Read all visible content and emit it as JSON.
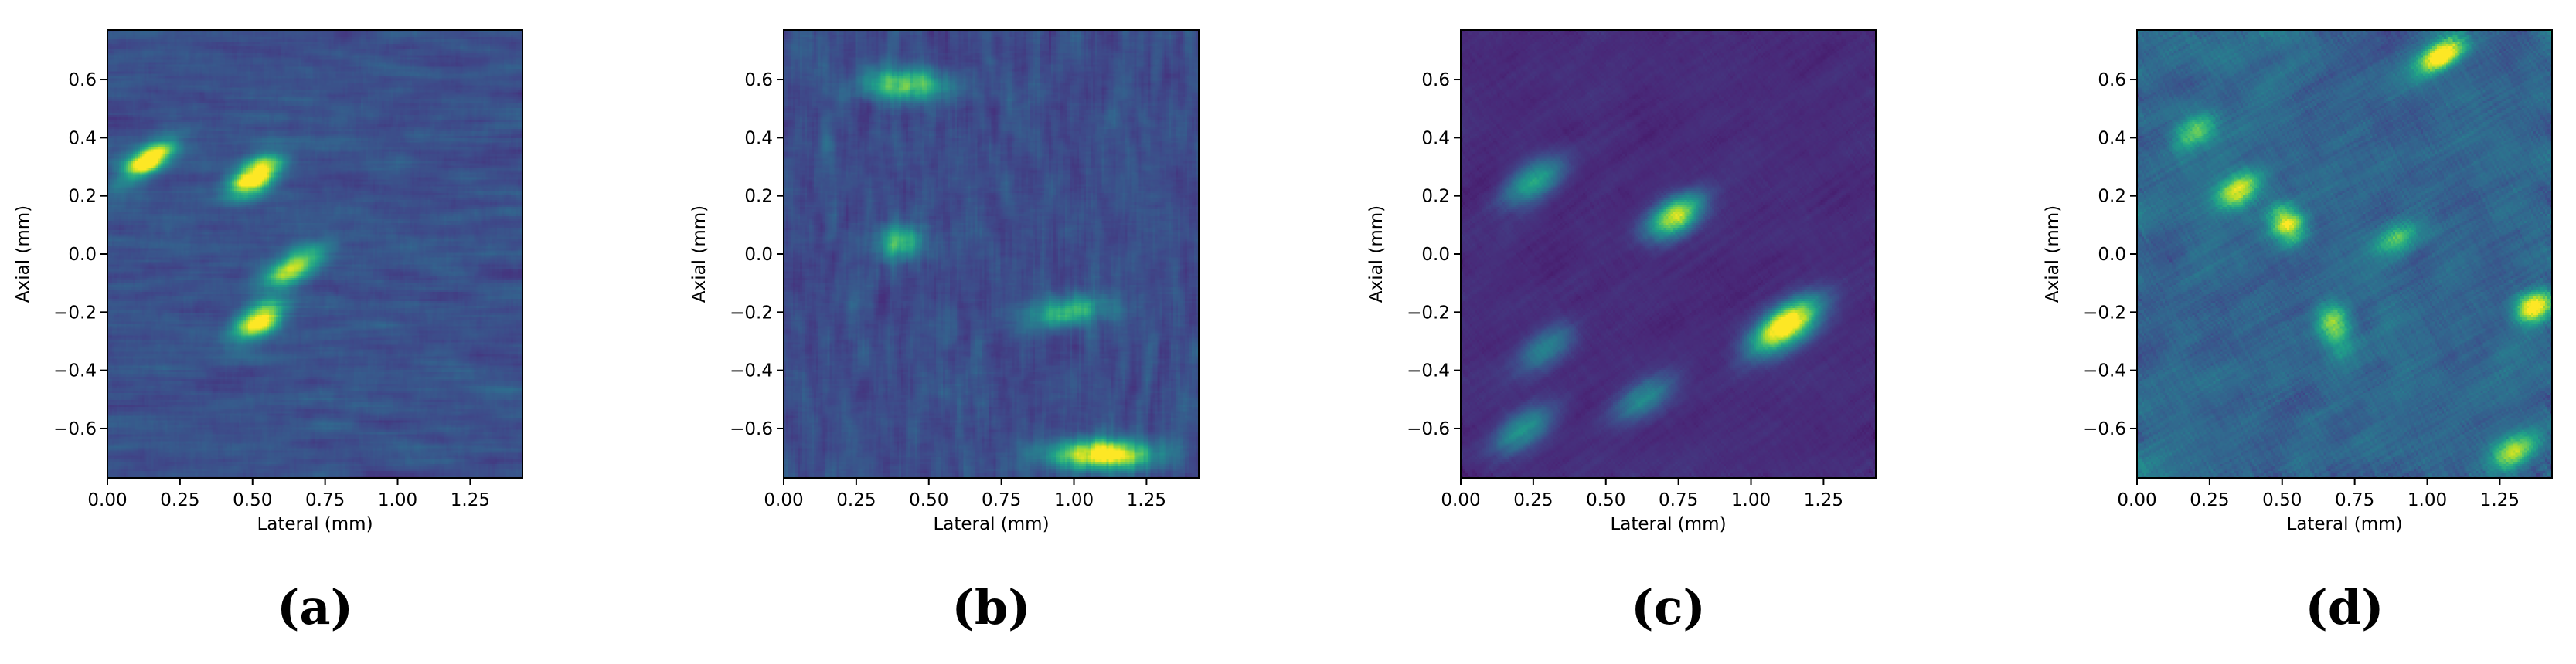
{
  "colors": {
    "colormap": [
      "#440154",
      "#482878",
      "#3e4989",
      "#31688e",
      "#26828e",
      "#1f9e89",
      "#35b779",
      "#6ece58",
      "#b5de2b",
      "#fde725"
    ],
    "axes": "#000000",
    "background": "#ffffff"
  },
  "chart_data": [
    {
      "type": "heatmap",
      "panel_label": "(a)",
      "xlabel": "Lateral (mm)",
      "ylabel": "Axial (mm)",
      "xlim": [
        0.0,
        1.43
      ],
      "ylim": [
        -0.77,
        0.77
      ],
      "xticks": [
        "0.00",
        "0.25",
        "0.50",
        "0.75",
        "1.00",
        "1.25"
      ],
      "yticks": [
        "0.6",
        "0.4",
        "0.2",
        "0.0",
        "−0.2",
        "−0.4",
        "−0.6"
      ],
      "colormap": "viridis",
      "background_level": 0.2,
      "noise_level": 0.22,
      "speckle_length_mm": [
        0.08,
        0.015
      ],
      "speckle_angle_deg": 0,
      "hotspots": [
        {
          "x": 0.14,
          "y": 0.32,
          "intensity": 0.9,
          "sx": 0.07,
          "sy": 0.03,
          "angle": -35
        },
        {
          "x": 0.51,
          "y": 0.27,
          "intensity": 1.0,
          "sx": 0.065,
          "sy": 0.035,
          "angle": -35
        },
        {
          "x": 0.64,
          "y": -0.05,
          "intensity": 0.7,
          "sx": 0.08,
          "sy": 0.035,
          "angle": -30
        },
        {
          "x": 0.52,
          "y": -0.23,
          "intensity": 0.85,
          "sx": 0.07,
          "sy": 0.035,
          "angle": -35
        }
      ]
    },
    {
      "type": "heatmap",
      "panel_label": "(b)",
      "xlabel": "Lateral (mm)",
      "ylabel": "Axial (mm)",
      "xlim": [
        0.0,
        1.43
      ],
      "ylim": [
        -0.77,
        0.77
      ],
      "xticks": [
        "0.00",
        "0.25",
        "0.50",
        "0.75",
        "1.00",
        "1.25"
      ],
      "yticks": [
        "0.6",
        "0.4",
        "0.2",
        "0.0",
        "−0.2",
        "−0.4",
        "−0.6"
      ],
      "colormap": "viridis",
      "background_level": 0.2,
      "noise_level": 0.25,
      "speckle_length_mm": [
        0.015,
        0.06
      ],
      "speckle_angle_deg": 0,
      "hotspots": [
        {
          "x": 0.42,
          "y": 0.58,
          "intensity": 0.55,
          "sx": 0.11,
          "sy": 0.04,
          "angle": 0
        },
        {
          "x": 0.4,
          "y": 0.04,
          "intensity": 0.45,
          "sx": 0.06,
          "sy": 0.04,
          "angle": 0
        },
        {
          "x": 0.98,
          "y": -0.2,
          "intensity": 0.45,
          "sx": 0.1,
          "sy": 0.035,
          "angle": -10
        },
        {
          "x": 1.1,
          "y": -0.69,
          "intensity": 0.9,
          "sx": 0.12,
          "sy": 0.035,
          "angle": 0
        }
      ]
    },
    {
      "type": "heatmap",
      "panel_label": "(c)",
      "xlabel": "Lateral (mm)",
      "ylabel": "Axial (mm)",
      "xlim": [
        0.0,
        1.43
      ],
      "ylim": [
        -0.77,
        0.77
      ],
      "xticks": [
        "0.00",
        "0.25",
        "0.50",
        "0.75",
        "1.00",
        "1.25"
      ],
      "yticks": [
        "0.6",
        "0.4",
        "0.2",
        "0.0",
        "−0.2",
        "−0.4",
        "−0.6"
      ],
      "colormap": "viridis",
      "background_level": 0.08,
      "noise_level": 0.15,
      "speckle_length_mm": [
        0.09,
        0.03
      ],
      "speckle_angle_deg": -35,
      "hotspots": [
        {
          "x": 0.25,
          "y": 0.25,
          "intensity": 0.45,
          "sx": 0.08,
          "sy": 0.04,
          "angle": -35
        },
        {
          "x": 0.74,
          "y": 0.13,
          "intensity": 0.8,
          "sx": 0.07,
          "sy": 0.04,
          "angle": -35
        },
        {
          "x": 1.12,
          "y": -0.25,
          "intensity": 1.0,
          "sx": 0.09,
          "sy": 0.045,
          "angle": -35
        },
        {
          "x": 0.63,
          "y": -0.5,
          "intensity": 0.35,
          "sx": 0.08,
          "sy": 0.04,
          "angle": -35
        },
        {
          "x": 0.22,
          "y": -0.6,
          "intensity": 0.4,
          "sx": 0.08,
          "sy": 0.04,
          "angle": -35
        },
        {
          "x": 0.3,
          "y": -0.32,
          "intensity": 0.3,
          "sx": 0.08,
          "sy": 0.04,
          "angle": -35
        }
      ]
    },
    {
      "type": "heatmap",
      "panel_label": "(d)",
      "xlabel": "Lateral (mm)",
      "ylabel": "Axial (mm)",
      "xlim": [
        0.0,
        1.43
      ],
      "ylim": [
        -0.77,
        0.77
      ],
      "xticks": [
        "0.00",
        "0.25",
        "0.50",
        "0.75",
        "1.00",
        "1.25"
      ],
      "yticks": [
        "0.6",
        "0.4",
        "0.2",
        "0.0",
        "−0.2",
        "−0.4",
        "−0.6"
      ],
      "colormap": "viridis",
      "background_level": 0.3,
      "noise_level": 0.45,
      "speckle_length_mm": [
        0.08,
        0.045
      ],
      "speckle_angle_deg": -30,
      "hotspots": [
        {
          "x": 1.05,
          "y": 0.68,
          "intensity": 0.9,
          "sx": 0.06,
          "sy": 0.03,
          "angle": -30
        },
        {
          "x": 0.35,
          "y": 0.22,
          "intensity": 0.75,
          "sx": 0.06,
          "sy": 0.035,
          "angle": -30
        },
        {
          "x": 0.52,
          "y": 0.1,
          "intensity": 0.75,
          "sx": 0.04,
          "sy": 0.05,
          "angle": -30
        },
        {
          "x": 1.37,
          "y": -0.18,
          "intensity": 0.9,
          "sx": 0.05,
          "sy": 0.035,
          "angle": -30
        },
        {
          "x": 0.68,
          "y": -0.25,
          "intensity": 0.6,
          "sx": 0.04,
          "sy": 0.06,
          "angle": -20
        },
        {
          "x": 1.3,
          "y": -0.68,
          "intensity": 0.6,
          "sx": 0.06,
          "sy": 0.035,
          "angle": -30
        },
        {
          "x": 0.2,
          "y": 0.42,
          "intensity": 0.55,
          "sx": 0.06,
          "sy": 0.035,
          "angle": -30
        },
        {
          "x": 0.9,
          "y": 0.05,
          "intensity": 0.5,
          "sx": 0.06,
          "sy": 0.035,
          "angle": -30
        }
      ]
    }
  ]
}
